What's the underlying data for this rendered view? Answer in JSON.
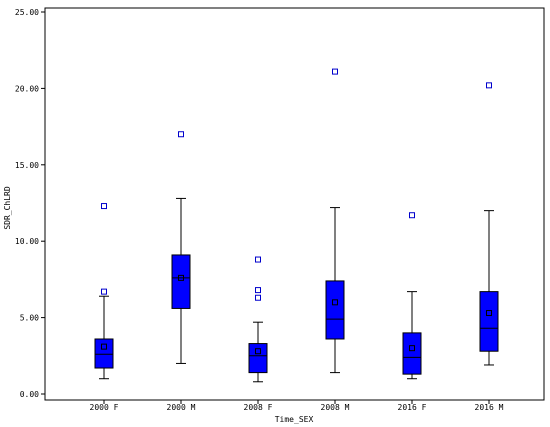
{
  "chart_data": {
    "type": "box",
    "title": "",
    "xlabel": "Time_SEX",
    "ylabel": "SDR_ChLRD",
    "ylim": [
      0,
      25
    ],
    "yticks": [
      0,
      5,
      10,
      15,
      20,
      25
    ],
    "ytick_labels": [
      "0.00",
      "5.00",
      "10.00",
      "15.00",
      "20.00",
      "25.00"
    ],
    "grid": false,
    "legend": "none",
    "box_color": "#0000ff",
    "outlier_color": "#0000cc",
    "categories": [
      "2000 F",
      "2000 M",
      "2008 F",
      "2008 M",
      "2016 F",
      "2016 M"
    ],
    "boxes": [
      {
        "category": "2000 F",
        "whisker_low": 1.0,
        "q1": 1.7,
        "median": 2.6,
        "q3": 3.6,
        "whisker_high": 6.4,
        "mean": 3.1,
        "outliers": [
          6.7,
          12.3
        ]
      },
      {
        "category": "2000 M",
        "whisker_low": 2.0,
        "q1": 5.6,
        "median": 7.6,
        "q3": 9.1,
        "whisker_high": 12.8,
        "mean": 7.6,
        "outliers": [
          17.0
        ]
      },
      {
        "category": "2008 F",
        "whisker_low": 0.8,
        "q1": 1.4,
        "median": 2.5,
        "q3": 3.3,
        "whisker_high": 4.7,
        "mean": 2.8,
        "outliers": [
          6.3,
          6.8,
          8.8
        ]
      },
      {
        "category": "2008 M",
        "whisker_low": 1.4,
        "q1": 3.6,
        "median": 4.9,
        "q3": 7.4,
        "whisker_high": 12.2,
        "mean": 6.0,
        "outliers": [
          21.1
        ]
      },
      {
        "category": "2016 F",
        "whisker_low": 1.0,
        "q1": 1.3,
        "median": 2.4,
        "q3": 4.0,
        "whisker_high": 6.7,
        "mean": 3.0,
        "outliers": [
          11.7
        ]
      },
      {
        "category": "2016 M",
        "whisker_low": 1.9,
        "q1": 2.8,
        "median": 4.3,
        "q3": 6.7,
        "whisker_high": 12.0,
        "mean": 5.3,
        "outliers": [
          20.2
        ]
      }
    ]
  }
}
